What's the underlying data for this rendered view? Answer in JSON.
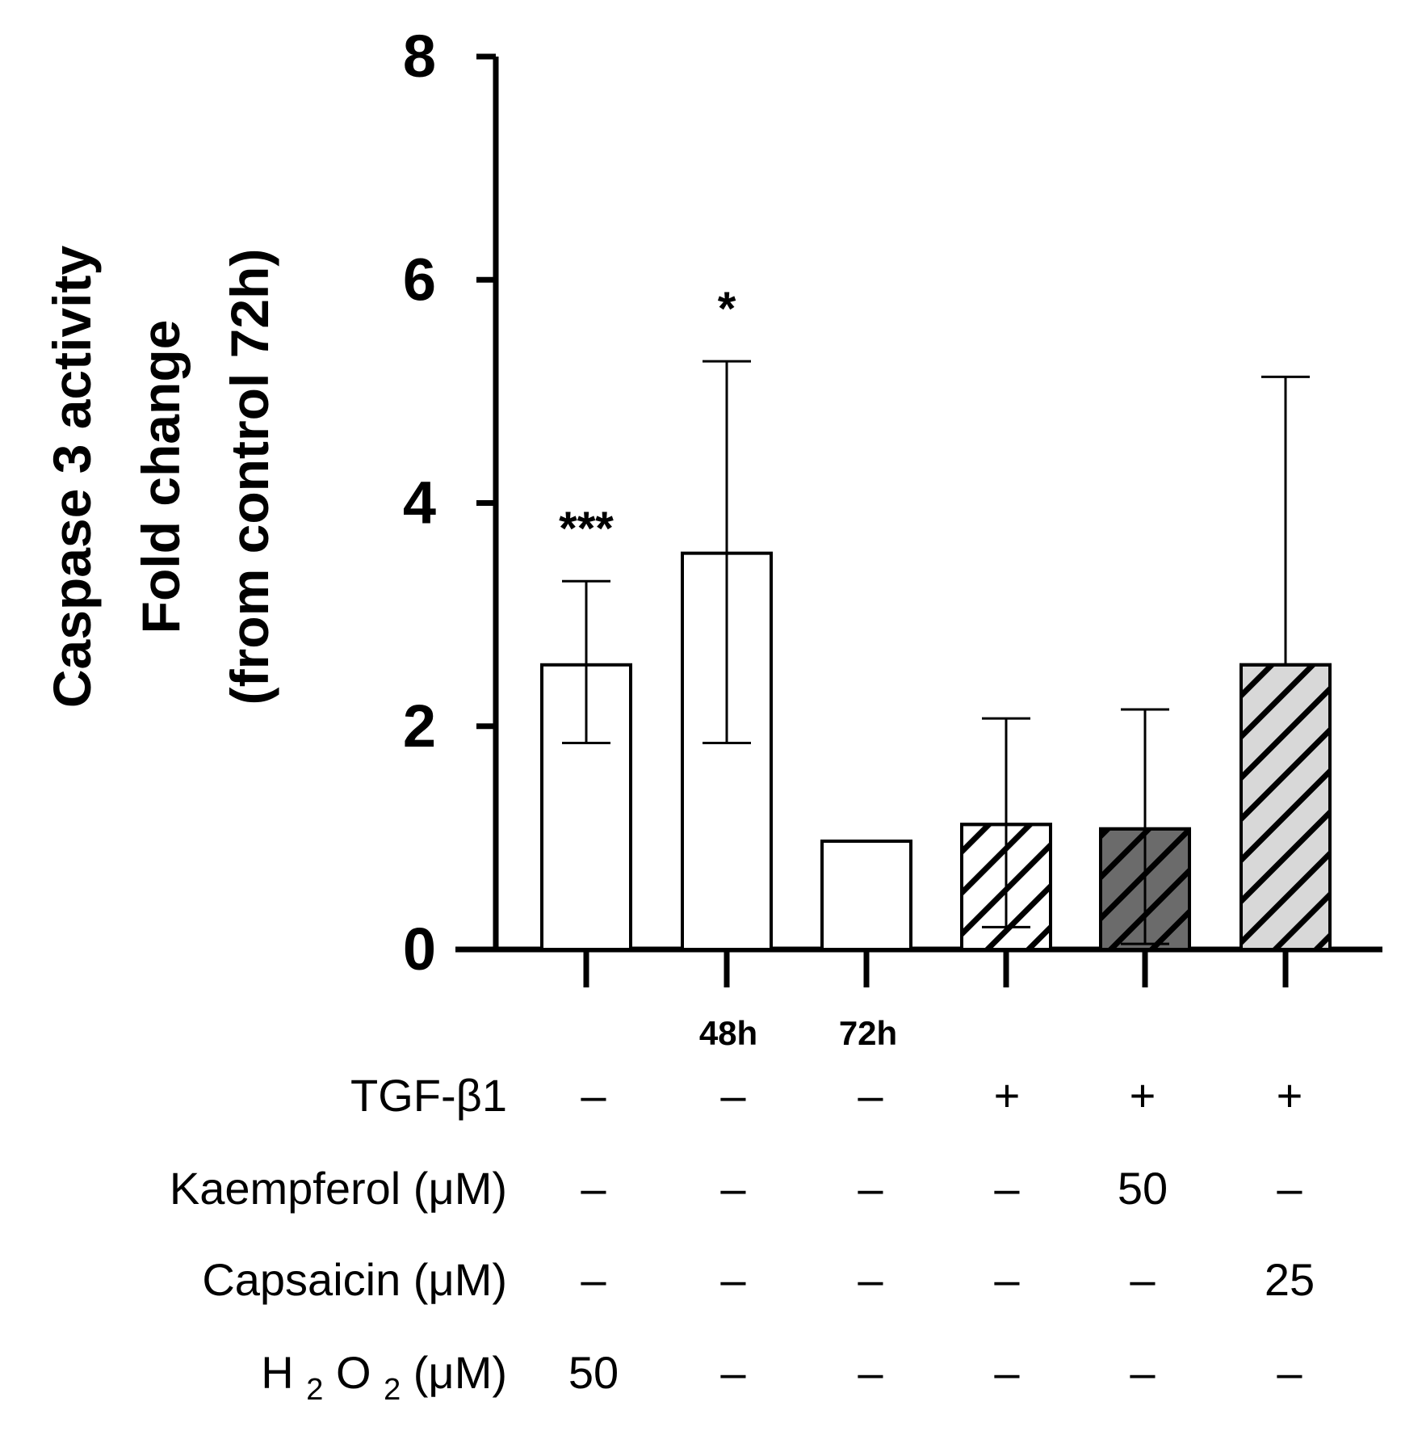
{
  "chart_data": {
    "type": "bar",
    "title": "",
    "ylabel_lines": [
      "Caspase 3 activity",
      "Fold change",
      "(from control 72h)"
    ],
    "ylim": [
      0,
      8
    ],
    "yticks": [
      0,
      2,
      4,
      6,
      8
    ],
    "ytick_labels": [
      "0",
      "2",
      "4",
      "6",
      "8"
    ],
    "bars": [
      {
        "value": 2.55,
        "err_low": 1.85,
        "err_high": 3.3,
        "sig": "***",
        "time_label": "",
        "fill": "#ffffff",
        "hatch": false,
        "hatch_color": "#000000"
      },
      {
        "value": 3.55,
        "err_low": 1.85,
        "err_high": 5.27,
        "sig": "*",
        "time_label": "48h",
        "fill": "#ffffff",
        "hatch": false,
        "hatch_color": "#000000"
      },
      {
        "value": 0.97,
        "err_low": null,
        "err_high": null,
        "sig": "",
        "time_label": "72h",
        "fill": "#ffffff",
        "hatch": false,
        "hatch_color": "#000000"
      },
      {
        "value": 1.12,
        "err_low": 0.2,
        "err_high": 2.07,
        "sig": "",
        "time_label": "",
        "fill": "#ffffff",
        "hatch": true,
        "hatch_color": "#000000"
      },
      {
        "value": 1.08,
        "err_low": 0.05,
        "err_high": 2.15,
        "sig": "",
        "time_label": "",
        "fill": "#6b6b6b",
        "hatch": true,
        "hatch_color": "#000000"
      },
      {
        "value": 2.55,
        "err_low": null,
        "err_high": 5.13,
        "sig": "",
        "time_label": "",
        "fill": "#d8d8d8",
        "hatch": true,
        "hatch_color": "#000000"
      }
    ],
    "treatments": [
      {
        "label": "TGF-β1",
        "values": [
          "–",
          "–",
          "–",
          "+",
          "+",
          "+"
        ]
      },
      {
        "label": "Kaempferol (μM)",
        "values": [
          "–",
          "–",
          "–",
          "–",
          "50",
          "–"
        ]
      },
      {
        "label": "Capsaicin (μM)",
        "values": [
          "–",
          "–",
          "–",
          "–",
          "–",
          "25"
        ]
      },
      {
        "label_main": "H",
        "label_sub1": "2",
        "label_mid": "O",
        "label_sub2": "2",
        "label_tail": " (μM)",
        "values": [
          "50",
          "–",
          "–",
          "–",
          "–",
          "–"
        ]
      }
    ]
  }
}
